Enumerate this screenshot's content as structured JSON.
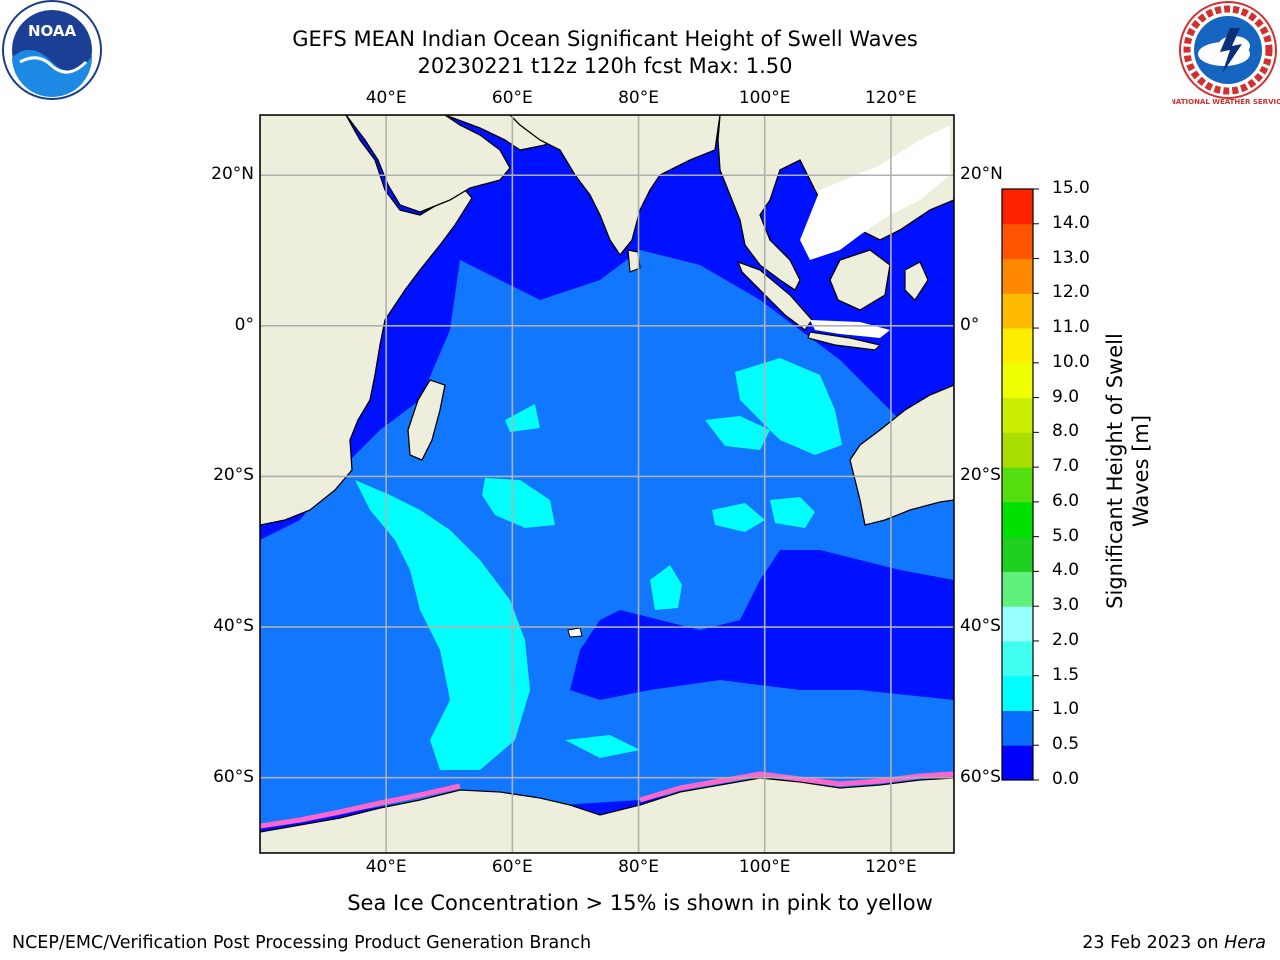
{
  "title_line1": "GEFS MEAN Indian Ocean Significant Height of Swell Waves",
  "title_line2": "20230221 t12z 120h fcst   Max: 1.50",
  "caption": "Sea Ice Concentration > 15% is shown in pink to yellow",
  "footer_left": "NCEP/EMC/Verification Post Processing Product Generation Branch",
  "footer_right_date": "23 Feb 2023 on ",
  "footer_right_machine": "Hera",
  "logos": {
    "left": {
      "icon": "noaa-logo",
      "text": "NOAA"
    },
    "right": {
      "icon": "nws-logo",
      "text": "NATIONAL WEATHER SERVICE"
    }
  },
  "map": {
    "lon_range": [
      20,
      130
    ],
    "lat_range": [
      -70,
      28
    ],
    "lon_ticks": [
      {
        "value": 40,
        "label": "40°E"
      },
      {
        "value": 60,
        "label": "60°E"
      },
      {
        "value": 80,
        "label": "80°E"
      },
      {
        "value": 100,
        "label": "100°E"
      },
      {
        "value": 120,
        "label": "120°E"
      }
    ],
    "lat_ticks": [
      {
        "value": 20,
        "label": "20°N"
      },
      {
        "value": 0,
        "label": "0°"
      },
      {
        "value": -20,
        "label": "20°S"
      },
      {
        "value": -40,
        "label": "40°S"
      },
      {
        "value": -60,
        "label": "60°S"
      }
    ],
    "colors": {
      "land": "#eeeedd",
      "ocean_low": "#0011ff",
      "ocean_mid": "#1177ff",
      "ocean_high": "#00ffff",
      "no_data": "#ffffff",
      "grid": "#b0b0b0"
    }
  },
  "colorbar": {
    "label_line1": "Significant Height of Swell",
    "label_line2": "Waves [m]",
    "ticks": [
      "0.0",
      "0.5",
      "1.0",
      "1.5",
      "2.0",
      "3.0",
      "4.0",
      "5.0",
      "6.0",
      "7.0",
      "8.0",
      "9.0",
      "10.0",
      "11.0",
      "12.0",
      "13.0",
      "14.0",
      "15.0"
    ],
    "colors": [
      "#0000ff",
      "#0a6eff",
      "#00ffff",
      "#40ffee",
      "#9affff",
      "#5ef07a",
      "#20d020",
      "#00e000",
      "#55dd10",
      "#aadd00",
      "#ccee00",
      "#eeff00",
      "#ffee00",
      "#ffbb00",
      "#ff8800",
      "#ff5500",
      "#ff2200"
    ]
  }
}
